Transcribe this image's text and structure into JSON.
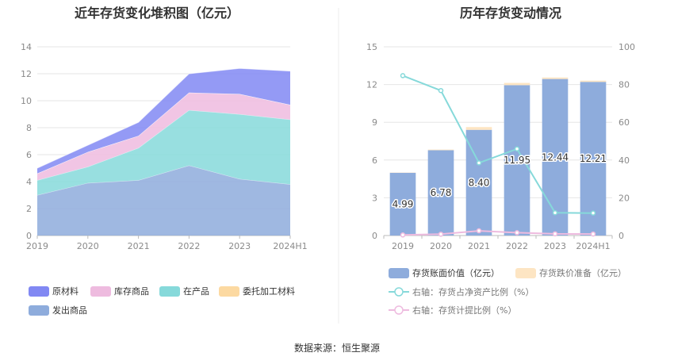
{
  "source_text": "数据来源：恒生聚源",
  "chart_data": [
    {
      "type": "area",
      "stacked": true,
      "title": "近年存货变化堆积图（亿元）",
      "categories": [
        "2019",
        "2020",
        "2021",
        "2022",
        "2023",
        "2024H1"
      ],
      "y_ticks": [
        "0",
        "2",
        "4",
        "6",
        "8",
        "10",
        "12",
        "14"
      ],
      "ylim": [
        0,
        14
      ],
      "series": [
        {
          "name": "发出商品",
          "color": "#8eacdc",
          "values": [
            3.0,
            3.9,
            4.1,
            5.2,
            4.2,
            3.8
          ]
        },
        {
          "name": "在产品",
          "color": "#86d9da",
          "values": [
            1.1,
            1.2,
            2.4,
            4.1,
            4.8,
            4.8
          ]
        },
        {
          "name": "库存商品",
          "color": "#eebbdf",
          "values": [
            0.5,
            1.1,
            0.9,
            1.3,
            1.5,
            1.1
          ]
        },
        {
          "name": "委托加工材料",
          "color": "#fcd9a1",
          "values": [
            0.0,
            0.0,
            0.0,
            0.0,
            0.0,
            0.0
          ]
        },
        {
          "name": "原材料",
          "color": "#8188f3",
          "values": [
            0.4,
            0.5,
            1.0,
            1.4,
            1.9,
            2.5
          ]
        }
      ],
      "legend_order": [
        "原材料",
        "库存商品",
        "在产品",
        "委托加工材料",
        "发出商品"
      ],
      "legend_position": "bottom-left",
      "grid": true
    },
    {
      "type": "bar",
      "stacked": true,
      "title": "历年存货变动情况",
      "categories": [
        "2019",
        "2020",
        "2021",
        "2022",
        "2023",
        "2024H1"
      ],
      "y_ticks": [
        "0",
        "3",
        "6",
        "9",
        "12",
        "15"
      ],
      "ylim": [
        0,
        15
      ],
      "y2_ticks": [
        "0",
        "20",
        "40",
        "60",
        "80",
        "100"
      ],
      "y2lim": [
        0,
        100
      ],
      "bars": [
        {
          "name": "存货账面价值（亿元）",
          "color": "#8eacdc",
          "values": [
            4.99,
            6.78,
            8.4,
            11.95,
            12.44,
            12.21
          ],
          "labels": [
            "4.99",
            "6.78",
            "8.40",
            "11.95",
            "12.44",
            "12.21"
          ]
        },
        {
          "name": "存货跌价准备（亿元）",
          "color": "#fde5c3",
          "values": [
            0.02,
            0.05,
            0.22,
            0.18,
            0.12,
            0.1
          ]
        }
      ],
      "lines": [
        {
          "name": "右轴：存货占净资产比例（%）",
          "color": "#86d9da",
          "axis": "right",
          "values": [
            84.7,
            76.8,
            38.5,
            45.9,
            12.1,
            11.9
          ]
        },
        {
          "name": "右轴：存货计提比例（%）",
          "color": "#eebbdf",
          "axis": "right",
          "values": [
            0.3,
            0.7,
            2.5,
            1.5,
            0.9,
            0.8
          ]
        }
      ],
      "legend_position": "bottom",
      "grid": true
    }
  ]
}
